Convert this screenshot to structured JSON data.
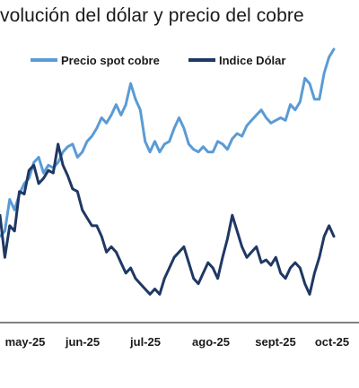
{
  "chart_data": {
    "type": "line",
    "title": "volución del dólar y precio del cobre",
    "xlabel": "",
    "ylabel": "",
    "grid": false,
    "legend_position": "top",
    "x_tick_labels": [
      "may-25",
      "jun-25",
      "jul-25",
      "ago-25",
      "sept-25",
      "oct-25"
    ],
    "colors": {
      "copper": "#5b9bd5",
      "dollar": "#1f3864",
      "axis": "#000000"
    },
    "series": [
      {
        "name": "Precio spot cobre",
        "color": "#5b9bd5",
        "values": [
          0.28,
          0.3,
          0.42,
          0.38,
          0.44,
          0.48,
          0.5,
          0.56,
          0.58,
          0.52,
          0.55,
          0.54,
          0.56,
          0.6,
          0.62,
          0.63,
          0.58,
          0.6,
          0.64,
          0.66,
          0.69,
          0.73,
          0.71,
          0.74,
          0.78,
          0.74,
          0.78,
          0.86,
          0.8,
          0.76,
          0.64,
          0.6,
          0.64,
          0.6,
          0.63,
          0.64,
          0.69,
          0.73,
          0.69,
          0.63,
          0.61,
          0.6,
          0.62,
          0.6,
          0.6,
          0.64,
          0.63,
          0.61,
          0.65,
          0.67,
          0.66,
          0.7,
          0.72,
          0.74,
          0.76,
          0.73,
          0.71,
          0.72,
          0.73,
          0.72,
          0.78,
          0.76,
          0.79,
          0.88,
          0.86,
          0.8,
          0.8,
          0.9,
          0.96,
          0.99
        ]
      },
      {
        "name": "Indice Dólar",
        "color": "#1f3864",
        "values": [
          0.36,
          0.2,
          0.32,
          0.3,
          0.45,
          0.44,
          0.53,
          0.55,
          0.48,
          0.5,
          0.53,
          0.52,
          0.63,
          0.55,
          0.51,
          0.46,
          0.45,
          0.38,
          0.35,
          0.32,
          0.32,
          0.28,
          0.22,
          0.24,
          0.22,
          0.18,
          0.14,
          0.16,
          0.12,
          0.1,
          0.08,
          0.06,
          0.08,
          0.06,
          0.12,
          0.16,
          0.2,
          0.22,
          0.24,
          0.18,
          0.12,
          0.1,
          0.14,
          0.18,
          0.16,
          0.12,
          0.2,
          0.27,
          0.36,
          0.3,
          0.24,
          0.2,
          0.22,
          0.24,
          0.18,
          0.19,
          0.17,
          0.2,
          0.14,
          0.12,
          0.16,
          0.18,
          0.16,
          0.1,
          0.06,
          0.14,
          0.2,
          0.28,
          0.32,
          0.28
        ]
      }
    ]
  }
}
